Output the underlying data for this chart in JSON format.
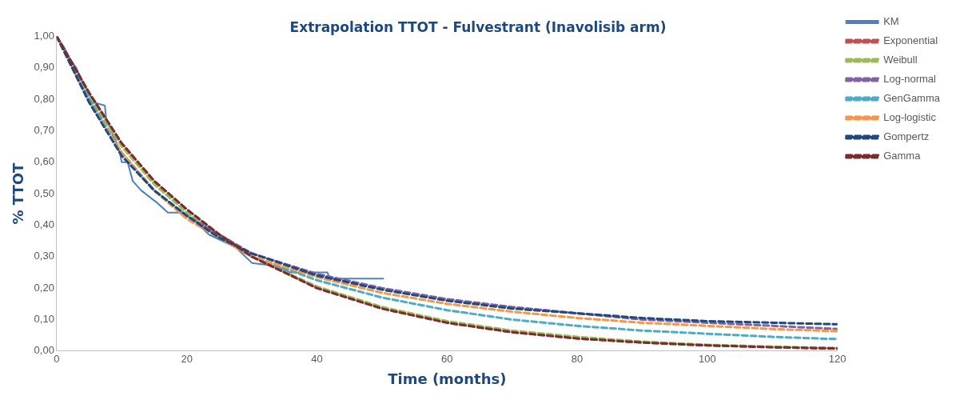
{
  "chart_data": {
    "type": "line",
    "title": "Extrapolation TTOT - Fulvestrant (Inavolisib arm)",
    "xlabel": "Time (months)",
    "ylabel": "% TTOT",
    "x": [
      0,
      5,
      10,
      15,
      20,
      25,
      30,
      40,
      50,
      60,
      70,
      80,
      90,
      100,
      110,
      120
    ],
    "series": [
      {
        "name": "KM",
        "color": "#4f81bd",
        "line_style": "solid",
        "x": [
          0,
          1,
          2,
          3,
          4.1,
          5.7,
          7.4,
          7.6,
          9,
          9.6,
          10,
          10.9,
          11.7,
          13,
          15.5,
          17.1,
          18.8,
          20.9,
          23.4,
          27.5,
          30,
          33.7,
          35.8,
          41.6,
          42,
          50.2
        ],
        "values": [
          1.0,
          0.97,
          0.93,
          0.9,
          0.85,
          0.79,
          0.78,
          0.74,
          0.67,
          0.64,
          0.6,
          0.6,
          0.54,
          0.51,
          0.47,
          0.44,
          0.44,
          0.42,
          0.37,
          0.33,
          0.28,
          0.27,
          0.25,
          0.25,
          0.23,
          0.23
        ]
      },
      {
        "name": "Exponential",
        "color": "#c0504d",
        "line_style": "dashed",
        "values": [
          1.0,
          0.82,
          0.66,
          0.54,
          0.45,
          0.37,
          0.3,
          0.2,
          0.135,
          0.09,
          0.06,
          0.04,
          0.027,
          0.018,
          0.012,
          0.008
        ]
      },
      {
        "name": "Weibull",
        "color": "#9bbb59",
        "line_style": "dashed",
        "values": [
          1.0,
          0.81,
          0.65,
          0.53,
          0.44,
          0.36,
          0.3,
          0.205,
          0.14,
          0.095,
          0.065,
          0.045,
          0.03,
          0.02,
          0.014,
          0.01
        ]
      },
      {
        "name": "Log-normal",
        "color": "#8064a2",
        "line_style": "dashed",
        "values": [
          1.0,
          0.8,
          0.63,
          0.51,
          0.43,
          0.37,
          0.31,
          0.245,
          0.2,
          0.165,
          0.14,
          0.12,
          0.1,
          0.09,
          0.08,
          0.07
        ]
      },
      {
        "name": "GenGamma",
        "color": "#4bacc6",
        "line_style": "dashed",
        "values": [
          1.0,
          0.8,
          0.63,
          0.51,
          0.43,
          0.36,
          0.3,
          0.225,
          0.17,
          0.13,
          0.1,
          0.08,
          0.065,
          0.055,
          0.045,
          0.038
        ]
      },
      {
        "name": "Log-logistic",
        "color": "#f79646",
        "line_style": "dashed",
        "values": [
          1.0,
          0.79,
          0.63,
          0.51,
          0.42,
          0.36,
          0.3,
          0.235,
          0.185,
          0.15,
          0.125,
          0.105,
          0.09,
          0.08,
          0.07,
          0.063
        ]
      },
      {
        "name": "Gompertz",
        "color": "#1f497d",
        "line_style": "dashed",
        "values": [
          1.0,
          0.79,
          0.62,
          0.51,
          0.43,
          0.36,
          0.31,
          0.24,
          0.195,
          0.16,
          0.135,
          0.12,
          0.105,
          0.095,
          0.09,
          0.085
        ]
      },
      {
        "name": "Gamma",
        "color": "#7b2c2c",
        "line_style": "dashed",
        "values": [
          1.0,
          0.82,
          0.66,
          0.54,
          0.45,
          0.37,
          0.3,
          0.2,
          0.135,
          0.09,
          0.06,
          0.04,
          0.027,
          0.018,
          0.012,
          0.008
        ]
      }
    ],
    "xlim": [
      0,
      120
    ],
    "xticks": [
      0,
      20,
      40,
      60,
      80,
      100,
      120
    ],
    "ylim": [
      0,
      1
    ],
    "yticks": [
      {
        "value": 0,
        "label": "0,00"
      },
      {
        "value": 0.1,
        "label": "0,10"
      },
      {
        "value": 0.2,
        "label": "0,20"
      },
      {
        "value": 0.3,
        "label": "0,30"
      },
      {
        "value": 0.4,
        "label": "0,40"
      },
      {
        "value": 0.5,
        "label": "0,50"
      },
      {
        "value": 0.6,
        "label": "0,60"
      },
      {
        "value": 0.7,
        "label": "0,70"
      },
      {
        "value": 0.8,
        "label": "0,80"
      },
      {
        "value": 0.9,
        "label": "0,90"
      },
      {
        "value": 1,
        "label": "1,00"
      }
    ],
    "grid": false,
    "legend": "top right",
    "marker": "none"
  }
}
